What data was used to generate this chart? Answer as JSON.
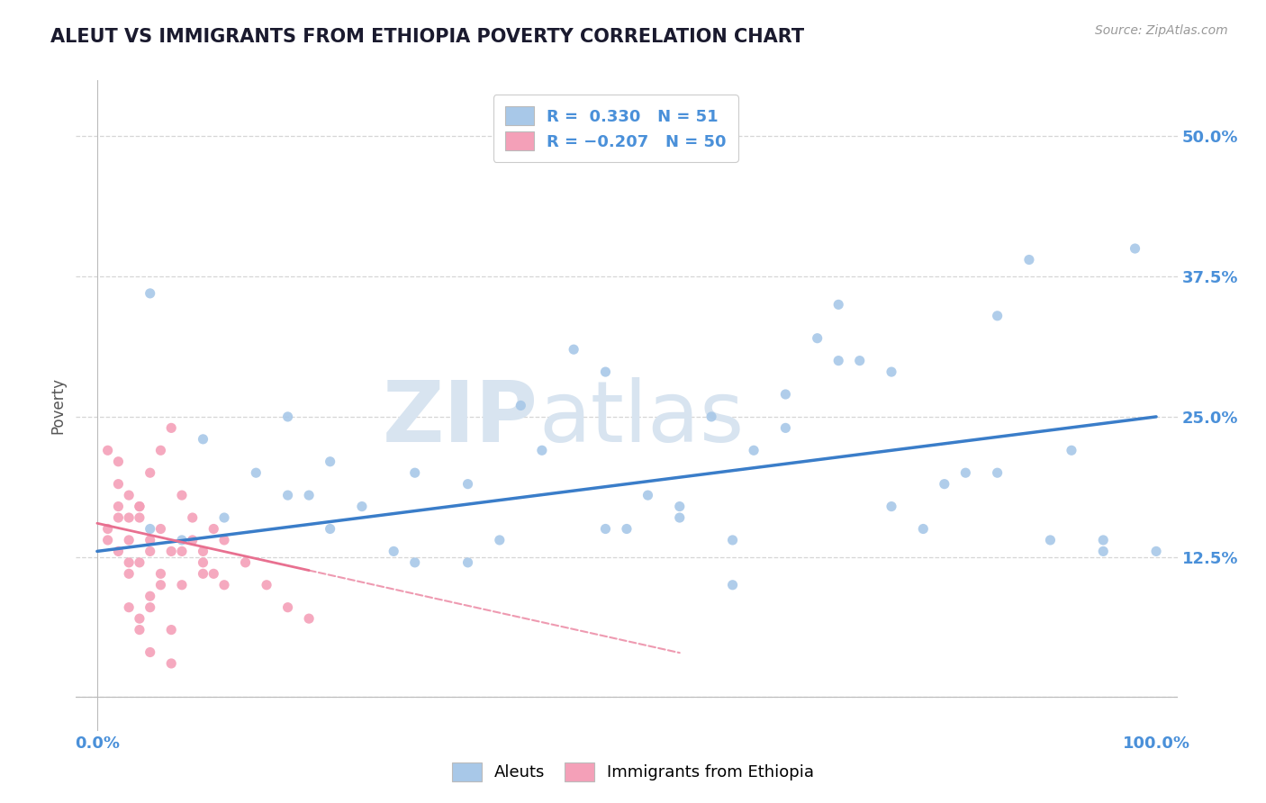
{
  "title": "ALEUT VS IMMIGRANTS FROM ETHIOPIA POVERTY CORRELATION CHART",
  "source": "Source: ZipAtlas.com",
  "ylabel": "Poverty",
  "xlim": [
    -2,
    102
  ],
  "ylim": [
    -3,
    55
  ],
  "yticks": [
    0,
    12.5,
    25.0,
    37.5,
    50.0
  ],
  "yticklabels": [
    "",
    "12.5%",
    "25.0%",
    "37.5%",
    "50.0%"
  ],
  "xticks": [
    0,
    100
  ],
  "xticklabels": [
    "0.0%",
    "100.0%"
  ],
  "aleut_R": 0.33,
  "aleut_N": 51,
  "ethiopia_R": -0.207,
  "ethiopia_N": 50,
  "aleut_color": "#a8c8e8",
  "ethiopia_color": "#f4a0b8",
  "aleut_line_color": "#3a7dc9",
  "ethiopia_line_color": "#e87090",
  "title_color": "#1a1a2e",
  "source_color": "#999999",
  "background_color": "#ffffff",
  "grid_color": "#cccccc",
  "watermark_zip": "ZIP",
  "watermark_atlas": "atlas",
  "watermark_color": "#d8e4f0",
  "aleut_trend_x0": 0,
  "aleut_trend_y0": 13.0,
  "aleut_trend_x1": 100,
  "aleut_trend_y1": 25.0,
  "eth_trend_x0": 0,
  "eth_trend_y0": 15.5,
  "eth_trend_x1": 50,
  "eth_trend_y1": 5.0,
  "eth_solid_end": 20,
  "aleut_scatter_x": [
    5,
    18,
    22,
    30,
    35,
    40,
    42,
    45,
    48,
    50,
    52,
    55,
    58,
    60,
    62,
    65,
    68,
    70,
    72,
    75,
    78,
    80,
    82,
    85,
    88,
    90,
    92,
    95,
    98,
    100,
    10,
    15,
    20,
    25,
    55,
    65,
    70,
    30,
    38,
    48,
    60,
    75,
    85,
    95,
    5,
    8,
    12,
    18,
    22,
    28,
    35
  ],
  "aleut_scatter_y": [
    36,
    25,
    21,
    20,
    19,
    26,
    22,
    31,
    29,
    15,
    18,
    17,
    25,
    14,
    22,
    27,
    32,
    35,
    30,
    29,
    15,
    19,
    20,
    34,
    39,
    14,
    22,
    14,
    40,
    13,
    23,
    20,
    18,
    17,
    16,
    24,
    30,
    12,
    14,
    15,
    10,
    17,
    20,
    13,
    15,
    14,
    16,
    18,
    15,
    13,
    12
  ],
  "eth_scatter_x": [
    1,
    1,
    2,
    2,
    3,
    3,
    4,
    4,
    5,
    5,
    6,
    6,
    7,
    7,
    8,
    8,
    9,
    9,
    10,
    10,
    11,
    11,
    12,
    12,
    3,
    4,
    5,
    6,
    7,
    2,
    3,
    4,
    5,
    2,
    3,
    1,
    2,
    4,
    5,
    3,
    6,
    7,
    4,
    5,
    14,
    16,
    18,
    20,
    8,
    10
  ],
  "eth_scatter_y": [
    15,
    14,
    16,
    13,
    18,
    12,
    17,
    16,
    20,
    14,
    22,
    15,
    24,
    13,
    18,
    10,
    16,
    14,
    13,
    12,
    11,
    15,
    14,
    10,
    8,
    6,
    9,
    10,
    3,
    17,
    11,
    7,
    13,
    19,
    16,
    22,
    21,
    12,
    8,
    14,
    11,
    6,
    17,
    4,
    12,
    10,
    8,
    7,
    13,
    11
  ]
}
